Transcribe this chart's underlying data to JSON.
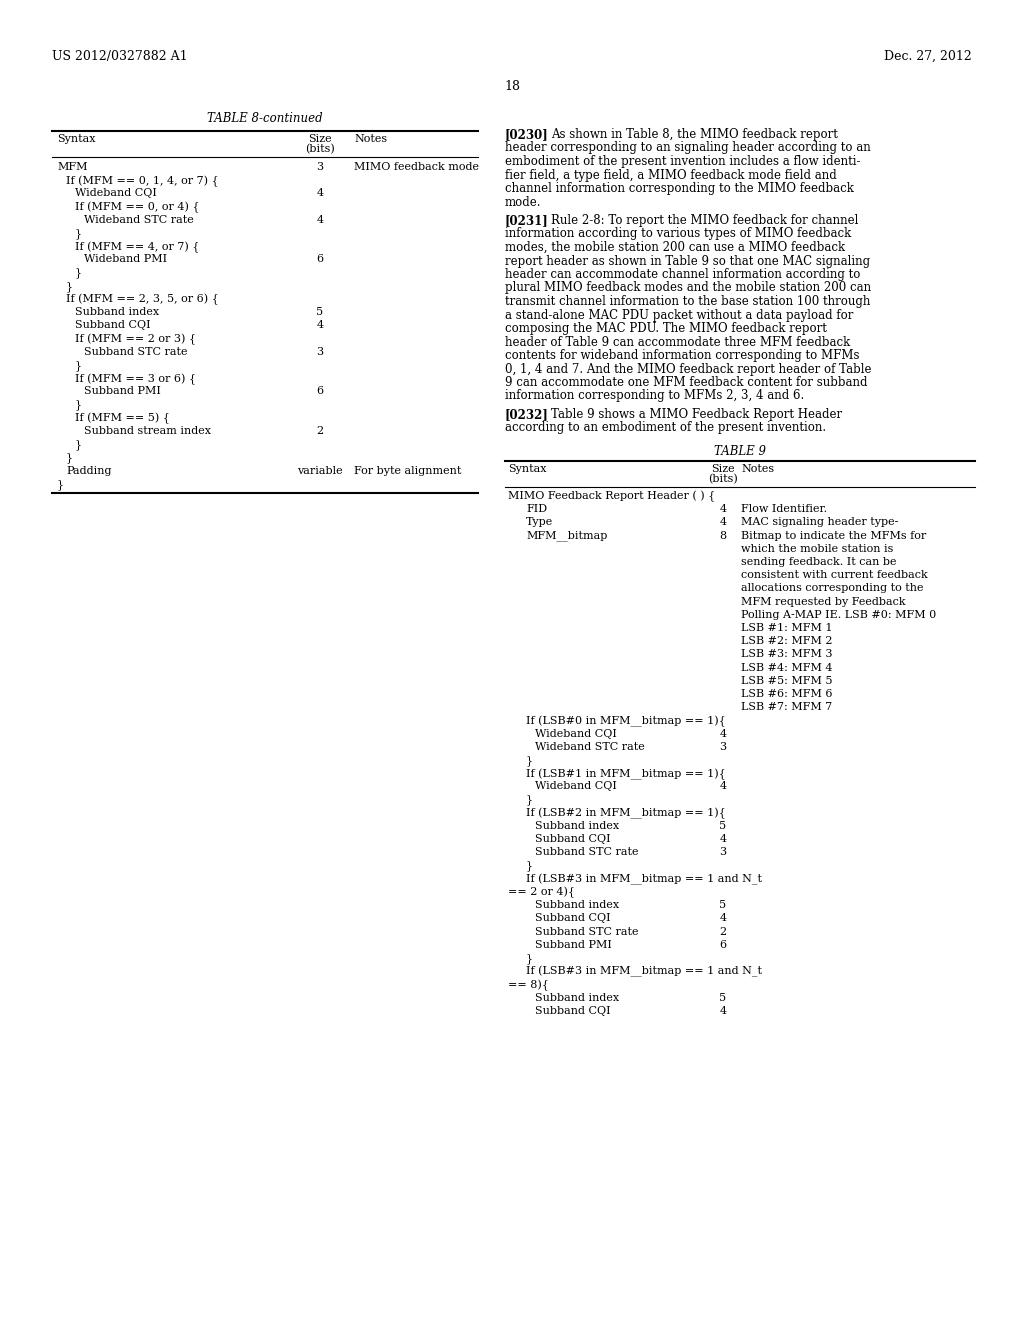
{
  "bg": "#ffffff",
  "header_left": "US 2012/0327882 A1",
  "header_right": "Dec. 27, 2012",
  "page_num": "18",
  "t8_title": "TABLE 8-continued",
  "t8_rows": [
    [
      "MFM",
      "3",
      "MIMO feedback mode"
    ],
    [
      "  If (MFM == 0, 1, 4, or 7) {",
      "",
      ""
    ],
    [
      "    Wideband CQI",
      "4",
      ""
    ],
    [
      "    If (MFM == 0, or 4) {",
      "",
      ""
    ],
    [
      "      Wideband STC rate",
      "4",
      ""
    ],
    [
      "    }",
      "",
      ""
    ],
    [
      "    If (MFM == 4, or 7) {",
      "",
      ""
    ],
    [
      "      Wideband PMI",
      "6",
      ""
    ],
    [
      "    }",
      "",
      ""
    ],
    [
      "  }",
      "",
      ""
    ],
    [
      "  If (MFM == 2, 3, 5, or 6) {",
      "",
      ""
    ],
    [
      "    Subband index",
      "5",
      ""
    ],
    [
      "    Subband CQI",
      "4",
      ""
    ],
    [
      "    If (MFM == 2 or 3) {",
      "",
      ""
    ],
    [
      "      Subband STC rate",
      "3",
      ""
    ],
    [
      "    }",
      "",
      ""
    ],
    [
      "    If (MFM == 3 or 6) {",
      "",
      ""
    ],
    [
      "      Subband PMI",
      "6",
      ""
    ],
    [
      "    }",
      "",
      ""
    ],
    [
      "    If (MFM == 5) {",
      "",
      ""
    ],
    [
      "      Subband stream index",
      "2",
      ""
    ],
    [
      "    }",
      "",
      ""
    ],
    [
      "  }",
      "",
      ""
    ],
    [
      "  Padding",
      "variable",
      "For byte alignment"
    ],
    [
      "}",
      "",
      ""
    ]
  ],
  "p230_tag": "[0230]",
  "p230_lines": [
    "As shown in Table 8, the MIMO feedback report",
    "header corresponding to an signaling header according to an",
    "embodiment of the present invention includes a flow identi-",
    "fier field, a type field, a MIMO feedback mode field and",
    "channel information corresponding to the MIMO feedback",
    "mode."
  ],
  "p231_tag": "[0231]",
  "p231_lines": [
    "Rule 2-8: To report the MIMO feedback for channel",
    "information according to various types of MIMO feedback",
    "modes, the mobile station 200 can use a MIMO feedback",
    "report header as shown in Table 9 so that one MAC signaling",
    "header can accommodate channel information according to",
    "plural MIMO feedback modes and the mobile station 200 can",
    "transmit channel information to the base station 100 through",
    "a stand-alone MAC PDU packet without a data payload for",
    "composing the MAC PDU. The MIMO feedback report",
    "header of Table 9 can accommodate three MFM feedback",
    "contents for wideband information corresponding to MFMs",
    "0, 1, 4 and 7. And the MIMO feedback report header of Table",
    "9 can accommodate one MFM feedback content for subband",
    "information corresponding to MFMs 2, 3, 4 and 6."
  ],
  "p232_tag": "[0232]",
  "p232_lines": [
    "Table 9 shows a MIMO Feedback Report Header",
    "according to an embodiment of the present invention."
  ],
  "t9_title": "TABLE 9",
  "t9_rows": [
    [
      "MIMO Feedback Report Header ( ) {",
      "",
      ""
    ],
    [
      "    FID",
      "4",
      "Flow Identifier."
    ],
    [
      "    Type",
      "4",
      "MAC signaling header type-"
    ],
    [
      "    MFM__bitmap",
      "8",
      "Bitmap to indicate the MFMs for\nwhich the mobile station is\nsending feedback. It can be\nconsistent with current feedback\nallocations corresponding to the\nMFM requested by Feedback\nPolling A-MAP IE. LSB #0: MFM 0\nLSB #1: MFM 1\nLSB #2: MFM 2\nLSB #3: MFM 3\nLSB #4: MFM 4\nLSB #5: MFM 5\nLSB #6: MFM 6\nLSB #7: MFM 7"
    ],
    [
      "    If (LSB#0 in MFM__bitmap == 1){",
      "",
      ""
    ],
    [
      "      Wideband CQI",
      "4",
      ""
    ],
    [
      "      Wideband STC rate",
      "3",
      ""
    ],
    [
      "    }",
      "",
      ""
    ],
    [
      "    If (LSB#1 in MFM__bitmap == 1){",
      "",
      ""
    ],
    [
      "      Wideband CQI",
      "4",
      ""
    ],
    [
      "    }",
      "",
      ""
    ],
    [
      "    If (LSB#2 in MFM__bitmap == 1){",
      "",
      ""
    ],
    [
      "      Subband index",
      "5",
      ""
    ],
    [
      "      Subband CQI",
      "4",
      ""
    ],
    [
      "      Subband STC rate",
      "3",
      ""
    ],
    [
      "    }",
      "",
      ""
    ],
    [
      "    If (LSB#3 in MFM__bitmap == 1 and N_t",
      "",
      ""
    ],
    [
      "== 2 or 4){",
      "",
      ""
    ],
    [
      "      Subband index",
      "5",
      ""
    ],
    [
      "      Subband CQI",
      "4",
      ""
    ],
    [
      "      Subband STC rate",
      "2",
      ""
    ],
    [
      "      Subband PMI",
      "6",
      ""
    ],
    [
      "    }",
      "",
      ""
    ],
    [
      "    If (LSB#3 in MFM__bitmap == 1 and N_t",
      "",
      ""
    ],
    [
      "== 8){",
      "",
      ""
    ],
    [
      "      Subband index",
      "5",
      ""
    ],
    [
      "      Subband CQI",
      "4",
      ""
    ]
  ]
}
